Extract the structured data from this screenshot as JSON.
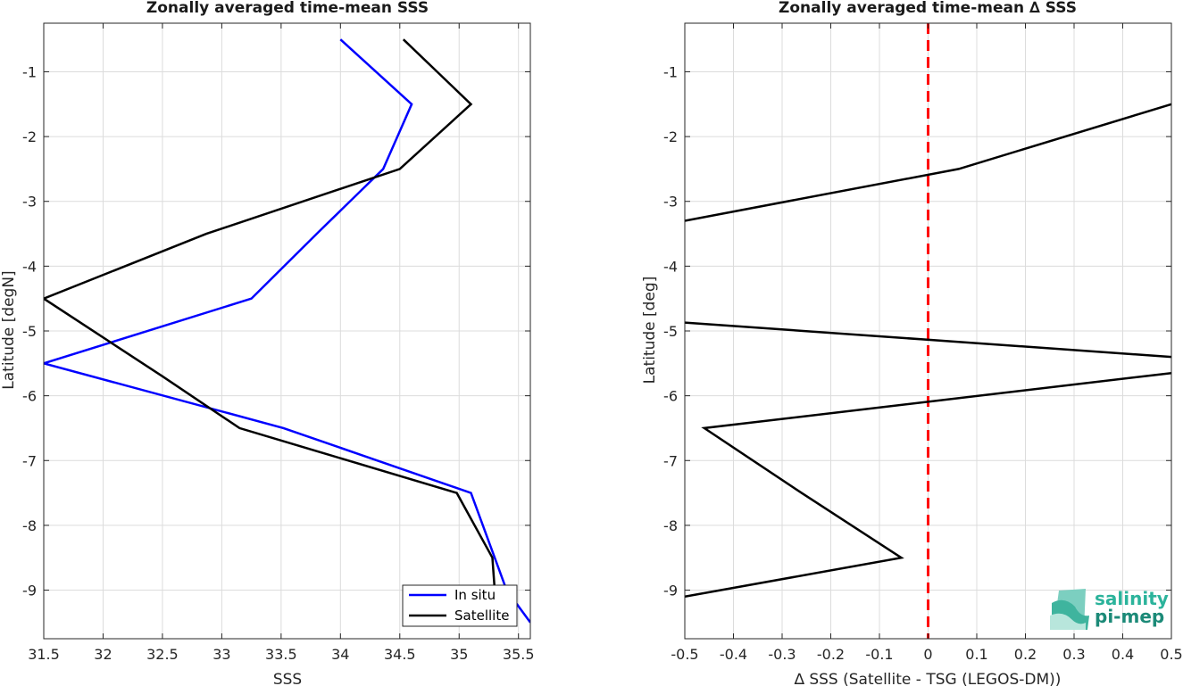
{
  "chart_data": [
    {
      "type": "line",
      "title": "Zonally averaged time-mean SSS",
      "xlabel": "SSS",
      "ylabel": "Latitude [degN]",
      "xlim": [
        31.5,
        35.6
      ],
      "ylim": [
        -9.75,
        -0.25
      ],
      "xticks": [
        "31.5",
        "32",
        "32.5",
        "33",
        "33.5",
        "34",
        "34.5",
        "35",
        "35.5"
      ],
      "yticks": [
        "-1",
        "-2",
        "-3",
        "-4",
        "-5",
        "-6",
        "-7",
        "-8",
        "-9"
      ],
      "grid": true,
      "legend": "bottom-right",
      "series": [
        {
          "name": "In situ",
          "color": "#0000ff",
          "points": [
            [
              34.0,
              -0.5
            ],
            [
              34.6,
              -1.5
            ],
            [
              34.36,
              -2.5
            ],
            [
              33.8,
              -3.5
            ],
            [
              33.25,
              -4.5
            ],
            [
              31.5,
              -5.5
            ],
            [
              33.52,
              -6.5
            ],
            [
              35.1,
              -7.5
            ],
            [
              35.4,
              -9.0
            ],
            [
              35.6,
              -9.5
            ]
          ]
        },
        {
          "name": "Satellite",
          "color": "#000000",
          "points": [
            [
              34.53,
              -0.5
            ],
            [
              35.1,
              -1.5
            ],
            [
              34.5,
              -2.5
            ],
            [
              32.87,
              -3.5
            ],
            [
              31.5,
              -4.5
            ],
            [
              32.5,
              -5.7
            ],
            [
              33.15,
              -6.5
            ],
            [
              34.98,
              -7.5
            ],
            [
              35.28,
              -8.5
            ],
            [
              35.3,
              -9.0
            ]
          ]
        }
      ]
    },
    {
      "type": "line",
      "title": "Zonally averaged time-mean ∆ SSS",
      "xlabel": "∆ SSS (Satellite - TSG (LEGOS-DM))",
      "ylabel": "Latitude [deg]",
      "xlim": [
        -0.5,
        0.5
      ],
      "ylim": [
        -9.75,
        -0.25
      ],
      "xticks": [
        "-0.5",
        "-0.4",
        "-0.3",
        "-0.2",
        "-0.1",
        "0",
        "0.1",
        "0.2",
        "0.3",
        "0.4",
        "0.5"
      ],
      "yticks": [
        "-1",
        "-2",
        "-3",
        "-4",
        "-5",
        "-6",
        "-7",
        "-8",
        "-9"
      ],
      "grid": true,
      "reference_line": {
        "x": 0,
        "color": "#ff0000",
        "style": "dashed"
      },
      "series": [
        {
          "color": "#000000",
          "segments": [
            [
              [
                0.5,
                -1.5
              ],
              [
                0.063,
                -2.5
              ],
              [
                -0.5,
                -3.3
              ]
            ],
            [
              [
                -0.5,
                -4.87
              ],
              [
                0.5,
                -5.4
              ]
            ],
            [
              [
                0.5,
                -5.65
              ],
              [
                -0.46,
                -6.5
              ],
              [
                -0.26,
                -7.5
              ],
              [
                -0.055,
                -8.5
              ],
              [
                -0.5,
                -9.1
              ]
            ]
          ]
        }
      ]
    }
  ],
  "logo": {
    "line1": "salinity",
    "line2": "pi-mep"
  }
}
